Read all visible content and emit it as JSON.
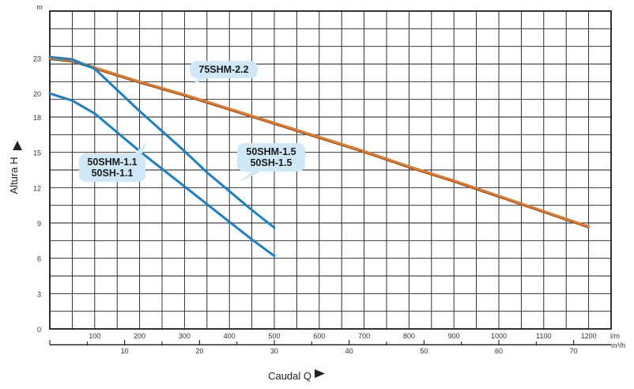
{
  "chart_data": {
    "type": "line",
    "y_unit": "m",
    "y_ticks": [
      "0",
      "3",
      "6",
      "9",
      "12",
      "15",
      "18",
      "20",
      "23"
    ],
    "x_unit_primary": "l/m",
    "x_ticks_primary": [
      "100",
      "200",
      "300",
      "400",
      "500",
      "600",
      "700",
      "800",
      "900",
      "1000",
      "1100",
      "1200"
    ],
    "x_unit_secondary": "m³/h",
    "x_ticks_secondary": [
      "10",
      "20",
      "30",
      "40",
      "50",
      "60",
      "70"
    ],
    "ylabel": "Altura  H",
    "xlabel": "Caudal  Q",
    "ylim": [
      0,
      27
    ],
    "xlim": [
      0,
      1250
    ],
    "grid": true,
    "series": [
      {
        "name": "75SHM-2.2",
        "color": "#e87722",
        "x": [
          0,
          50,
          100,
          200,
          300,
          400,
          500,
          600,
          700,
          800,
          900,
          1000,
          1100,
          1200
        ],
        "y": [
          23.0,
          22.8,
          22.2,
          21.0,
          19.9,
          18.7,
          17.5,
          16.3,
          15.1,
          13.8,
          12.6,
          11.3,
          10.0,
          8.7
        ]
      },
      {
        "name": "50SHM-1.5",
        "color": "#1b7fc4",
        "x": [
          0,
          50,
          100,
          150,
          200,
          250,
          300,
          350,
          400,
          450,
          500
        ],
        "y": [
          23.1,
          22.9,
          22.1,
          20.3,
          18.5,
          16.8,
          15.1,
          13.3,
          11.7,
          10.1,
          8.6
        ]
      },
      {
        "name": "50SHM-1.1",
        "color": "#1b7fc4",
        "x": [
          0,
          50,
          100,
          150,
          200,
          250,
          300,
          350,
          400,
          450,
          500
        ],
        "y": [
          20.0,
          19.4,
          18.3,
          16.7,
          15.1,
          13.6,
          12.1,
          10.6,
          9.1,
          7.6,
          6.2
        ]
      }
    ],
    "annotations": [
      {
        "text": "75SHM-2.2"
      },
      {
        "text": "50SHM-1.5\n50SH-1.5"
      },
      {
        "text": "50SHM-1.1\n50SH-1.1"
      }
    ]
  }
}
